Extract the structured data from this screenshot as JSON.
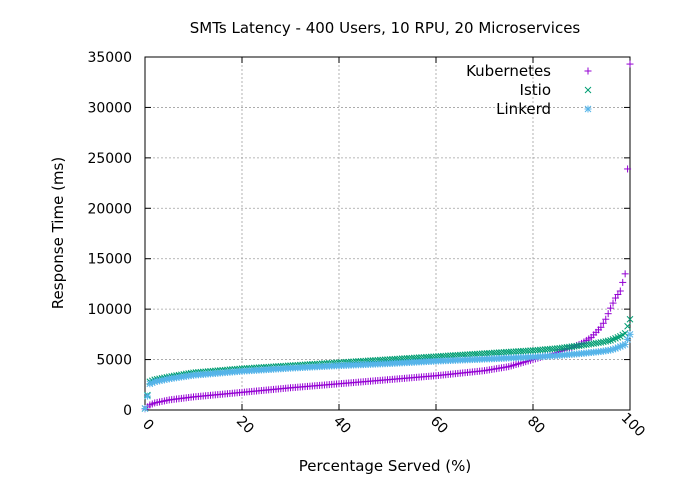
{
  "chart_data": {
    "type": "scatter",
    "title": "SMTs Latency - 400 Users, 10 RPU, 20 Microservices",
    "xlabel": "Percentage Served (%)",
    "ylabel": "Response Time (ms)",
    "xlim": [
      0,
      100
    ],
    "ylim": [
      0,
      35000
    ],
    "xticks": [
      "0",
      "20",
      "40",
      "60",
      "80",
      "100"
    ],
    "yticks": [
      "0",
      "5000",
      "10000",
      "15000",
      "20000",
      "25000",
      "30000",
      "35000"
    ],
    "grid": true,
    "legend_position": "top-right",
    "series": [
      {
        "name": "Kubernetes",
        "marker": "plus",
        "color": "#9400d3",
        "x": [
          0,
          1,
          2,
          5,
          10,
          20,
          30,
          40,
          50,
          60,
          70,
          75,
          80,
          85,
          88,
          90,
          92,
          94,
          95,
          96,
          97,
          98,
          99,
          100
        ],
        "y": [
          120,
          500,
          700,
          1000,
          1300,
          1750,
          2200,
          2600,
          3000,
          3400,
          3900,
          4300,
          5000,
          5700,
          6200,
          6600,
          7200,
          8200,
          9000,
          10100,
          11100,
          11800,
          13500,
          34300
        ]
      },
      {
        "name": "Istio",
        "marker": "cross",
        "color": "#009e73",
        "x": [
          0,
          1,
          2,
          5,
          10,
          20,
          30,
          40,
          50,
          60,
          70,
          80,
          85,
          90,
          94,
          96,
          97,
          98,
          99,
          100
        ],
        "y": [
          150,
          2800,
          3000,
          3300,
          3700,
          4100,
          4400,
          4700,
          5000,
          5300,
          5600,
          5900,
          6100,
          6400,
          6700,
          6900,
          7100,
          7300,
          7600,
          9000
        ]
      },
      {
        "name": "Linkerd",
        "marker": "star",
        "color": "#56b4e9",
        "x": [
          0,
          1,
          2,
          5,
          10,
          20,
          30,
          40,
          50,
          60,
          70,
          80,
          85,
          90,
          94,
          96,
          97,
          98,
          99,
          100
        ],
        "y": [
          150,
          2600,
          2800,
          3100,
          3450,
          3850,
          4150,
          4400,
          4600,
          4850,
          5050,
          5250,
          5400,
          5600,
          5800,
          5950,
          6100,
          6300,
          6500,
          7500
        ]
      }
    ]
  }
}
